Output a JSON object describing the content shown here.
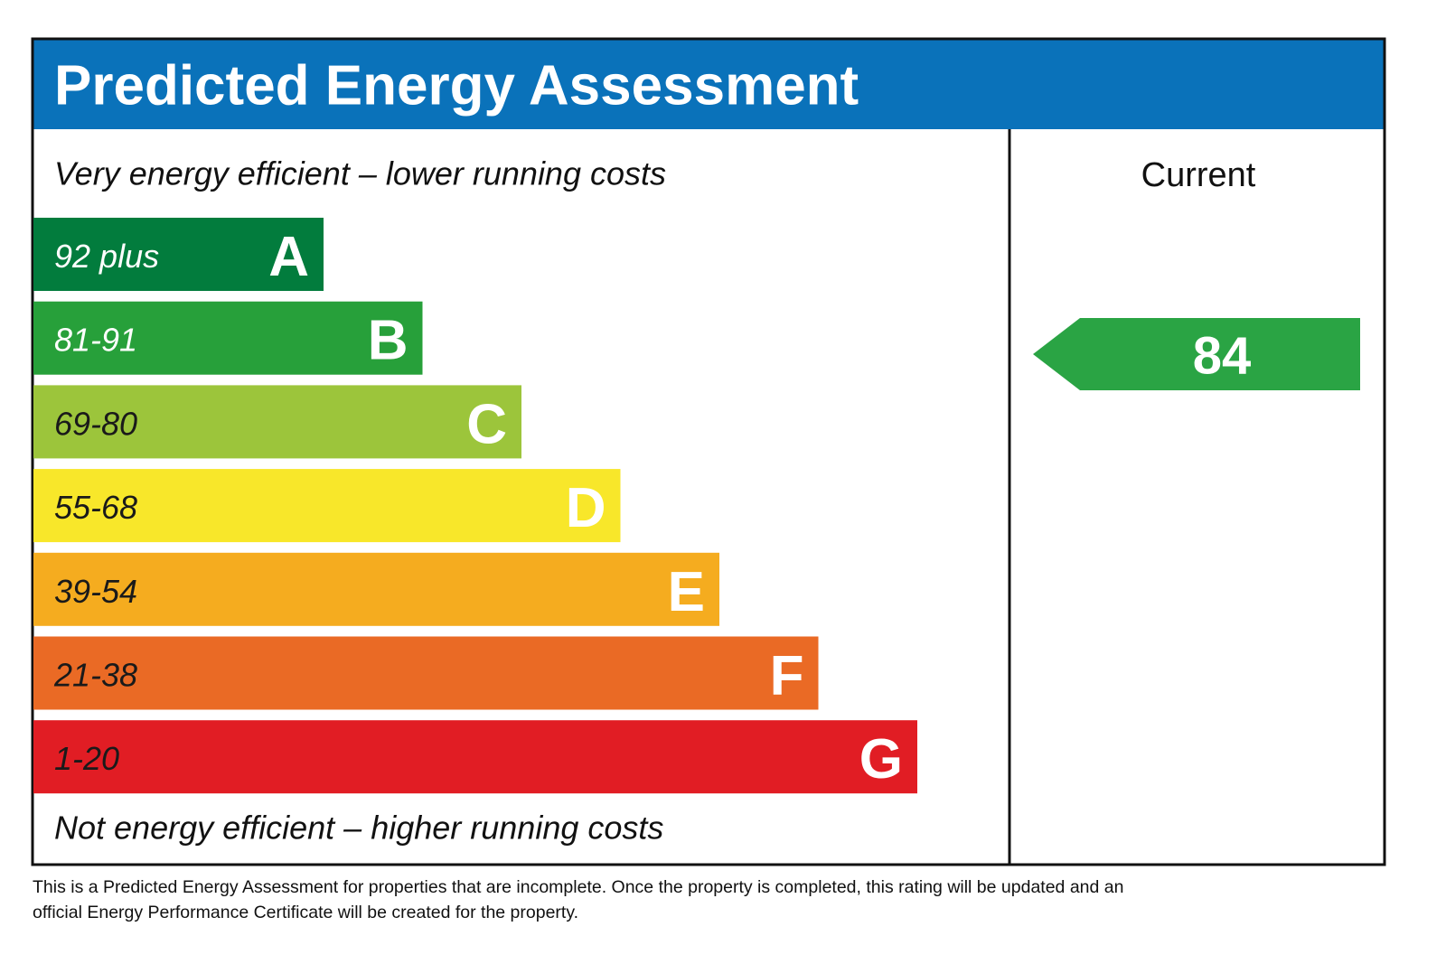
{
  "header": {
    "title": "Predicted Energy Assessment",
    "color": "#0a72ba"
  },
  "top_note": "Very energy efficient – lower running costs",
  "bottom_note": "Not energy efficient – higher running costs",
  "bands": [
    {
      "range": "92 plus",
      "letter": "A",
      "color": "#027c3d",
      "text_color": "#ffffff"
    },
    {
      "range": "81-91",
      "letter": "B",
      "color": "#27a03a",
      "text_color": "#ffffff"
    },
    {
      "range": "69-80",
      "letter": "C",
      "color": "#9cc53b",
      "text_color": "#1a1a1a"
    },
    {
      "range": "55-68",
      "letter": "D",
      "color": "#f8e72a",
      "text_color": "#1a1a1a"
    },
    {
      "range": "39-54",
      "letter": "E",
      "color": "#f5ac1f",
      "text_color": "#1a1a1a"
    },
    {
      "range": "21-38",
      "letter": "F",
      "color": "#ea6a25",
      "text_color": "#1a1a1a"
    },
    {
      "range": "1-20",
      "letter": "G",
      "color": "#e11d24",
      "text_color": "#1a1a1a"
    }
  ],
  "current": {
    "label": "Current",
    "rating": 84,
    "color": "#2aa444"
  },
  "footer": "This is a Predicted Energy Assessment for properties that are incomplete. Once the property is completed, this rating will be updated and an official Energy Performance Certificate will be created for the property."
}
